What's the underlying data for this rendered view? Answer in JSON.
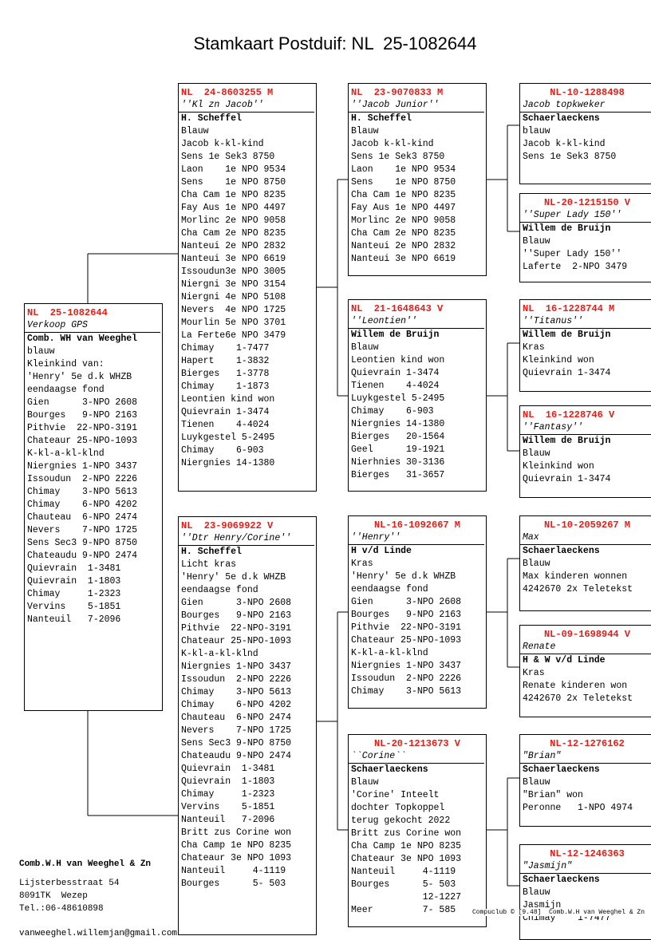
{
  "title": "Stamkaart Postduif: NL  25-1082644",
  "boxes": [
    {
      "id": "NL  25-1082644",
      "name": "Verkoop GPS",
      "owner": "Comb. WH van Weeghel",
      "lines": [
        "blauw",
        "Kleinkind van:",
        "'Henry' 5e d.k WHZB",
        "eendaagse fond",
        "Gien      3-NPO 2608",
        "Bourges   9-NPO 2163",
        "Pithvie  22-NPO-3191",
        "Chateaur 25-NPO-1093",
        "K-kl-a-kl-klnd",
        "Niergnies 1-NPO 3437",
        "Issoudun  2-NPO 2226",
        "Chimay    3-NPO 5613",
        "Chimay    6-NPO 4202",
        "Chauteau  6-NPO 2474",
        "Nevers    7-NPO 1725",
        "Sens Sec3 9-NPO 8750",
        "Chateaudu 9-NPO 2474",
        "Quievrain  1-3481",
        "Quievrain  1-1803",
        "Chimay     1-2323",
        "Vervins    5-1851",
        "Nanteuil   7-2096"
      ]
    },
    {
      "id": "NL  24-8603255 M",
      "name": "''Kl zn Jacob''",
      "owner": "H. Scheffel",
      "lines": [
        "Blauw",
        "Jacob k-kl-kind",
        "Sens 1e Sek3 8750",
        "Laon    1e NPO 9534",
        "Sens    1e NPO 8750",
        "Cha Cam 1e NPO 8235",
        "Fay Aus 1e NPO 4497",
        "Morlinc 2e NPO 9058",
        "Cha Cam 2e NPO 8235",
        "Nanteui 2e NPO 2832",
        "Nanteui 3e NPO 6619",
        "Issoudun3e NPO 3005",
        "Niergni 3e NPO 3154",
        "Niergni 4e NPO 5108",
        "Nevers  4e NPO 1725",
        "Mourlin 5e NPO 3701",
        "La Ferte6e NPO 3479",
        "Chimay    1-7477",
        "Hapert    1-3832",
        "Bierges   1-3778",
        "Chimay    1-1873",
        "Leontien kind won",
        "Quievrain 1-3474",
        "Tienen    4-4024",
        "Luykgestel 5-2495",
        "Chimay    6-903",
        "Niergnies 14-1380"
      ]
    },
    {
      "id": "NL  23-9069922 V",
      "name": "''Dtr Henry/Corine''",
      "owner": "H. Scheffel",
      "lines": [
        "Licht kras",
        "'Henry' 5e d.k WHZB",
        "eendaagse fond",
        "Gien      3-NPO 2608",
        "Bourges   9-NPO 2163",
        "Pithvie  22-NPO-3191",
        "Chateaur 25-NPO-1093",
        "K-kl-a-kl-klnd",
        "Niergnies 1-NPO 3437",
        "Issoudun  2-NPO 2226",
        "Chimay    3-NPO 5613",
        "Chimay    6-NPO 4202",
        "Chauteau  6-NPO 2474",
        "Nevers    7-NPO 1725",
        "Sens Sec3 9-NPO 8750",
        "Chateaudu 9-NPO 2474",
        "Quievrain  1-3481",
        "Quievrain  1-1803",
        "Chimay     1-2323",
        "Vervins    5-1851",
        "Nanteuil   7-2096",
        "Britt zus Corine won",
        "Cha Camp 1e NPO 8235",
        "Chateaur 3e NPO 1093",
        "Nanteuil     4-1119",
        "Bourges      5- 503"
      ]
    },
    {
      "id": "NL  23-9070833 M",
      "name": "''Jacob Junior''",
      "owner": "H. Scheffel",
      "lines": [
        "Blauw",
        "Jacob k-kl-kind",
        "Sens 1e Sek3 8750",
        "Laon    1e NPO 9534",
        "Sens    1e NPO 8750",
        "Cha Cam 1e NPO 8235",
        "Fay Aus 1e NPO 4497",
        "Morlinc 2e NPO 9058",
        "Cha Cam 2e NPO 8235",
        "Nanteui 2e NPO 2832",
        "Nanteui 3e NPO 6619"
      ]
    },
    {
      "id": "NL  21-1648643 V",
      "name": "''Leontien''",
      "owner": "Willem de Bruijn",
      "lines": [
        "Blauw",
        "Leontien kind won",
        "Quievrain 1-3474",
        "Tienen    4-4024",
        "Luykgestel 5-2495",
        "Chimay    6-903",
        "Niergnies 14-1380",
        "Bierges   20-1564",
        "Geel      19-1921",
        "Nierhnies 30-3136",
        "Bierges   31-3657"
      ]
    },
    {
      "id": "NL-16-1092667 M",
      "name": "''Henry''",
      "owner": "H v/d Linde",
      "lines": [
        "Kras",
        "'Henry' 5e d.k WHZB",
        "eendaagse fond",
        "Gien      3-NPO 2608",
        "Bourges   9-NPO 2163",
        "Pithvie  22-NPO-3191",
        "Chateaur 25-NPO-1093",
        "K-kl-a-kl-klnd",
        "Niergnies 1-NPO 3437",
        "Issoudun  2-NPO 2226",
        "Chimay    3-NPO 5613"
      ]
    },
    {
      "id": "NL-20-1213673 V",
      "name": "``Corine``",
      "owner": "Schaerlaeckens",
      "lines": [
        "Blauw",
        "'Corine' Inteelt",
        "dochter Topkoppel",
        "terug gekocht 2022",
        "Britt zus Corine won",
        "Cha Camp 1e NPO 8235",
        "Chateaur 3e NPO 1093",
        "Nanteuil     4-1119",
        "Bourges      5- 503",
        "             12-1227",
        "Meer         7- 585"
      ]
    },
    {
      "id": "NL-10-1288498",
      "name": "Jacob topkweker",
      "owner": "Schaerlaeckens",
      "lines": [
        "blauw",
        "Jacob k-kl-kind",
        "Sens 1e Sek3 8750"
      ]
    },
    {
      "id": "NL-20-1215150 V",
      "name": "''Super Lady 150''",
      "owner": "Willem de Bruijn",
      "lines": [
        "Blauw",
        "''Super Lady 150''",
        "Laferte  2-NPO 3479"
      ]
    },
    {
      "id": "NL  16-1228744 M",
      "name": "''Titanus''",
      "owner": "Willem de Bruijn",
      "lines": [
        "Kras",
        "Kleinkind won",
        "Quievrain 1-3474"
      ]
    },
    {
      "id": "NL  16-1228746 V",
      "name": "''Fantasy''",
      "owner": "Willem de Bruijn",
      "lines": [
        "Blauw",
        "Kleinkind won",
        "Quievrain 1-3474"
      ]
    },
    {
      "id": "NL-10-2059267 M",
      "name": "Max",
      "owner": "Schaerlaeckens",
      "lines": [
        "Blauw",
        "Max kinderen wonnen",
        "4242670 2x Teletekst"
      ]
    },
    {
      "id": "NL-09-1698944 V",
      "name": "Renate",
      "owner": "H & W v/d Linde",
      "lines": [
        "Kras",
        "Renate kinderen won",
        "4242670 2x Teletekst"
      ]
    },
    {
      "id": "NL-12-1276162",
      "name": "\"Brian\"",
      "owner": "Schaerlaeckens",
      "lines": [
        "Blauw",
        "\"Brian\" won",
        "Peronne   1-NPO 4974"
      ]
    },
    {
      "id": "NL-12-1246363",
      "name": "\"Jasmijn\"",
      "owner": "Schaerlaeckens",
      "lines": [
        "Blauw",
        "Jasmijn",
        "Chimay    1-7477"
      ]
    }
  ],
  "footer": {
    "name": "Comb.W.H van Weeghel & Zn",
    "address": [
      "Lijsterbesstraat 54",
      "8091TK  Wezep",
      "Tel.:06-48610898",
      "vanweeghel.willemjan@gmail.com"
    ]
  },
  "credit": "Compuclub © [9.48]  Comb.W.H van Weeghel & Zn"
}
